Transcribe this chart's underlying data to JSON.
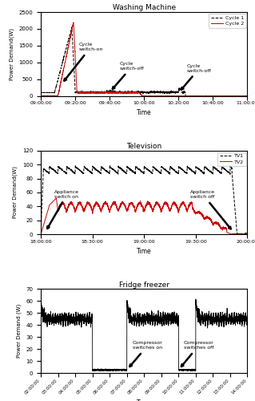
{
  "fig_width": 3.19,
  "fig_height": 5.0,
  "dpi": 100,
  "wm_title": "Washing Machine",
  "wm_ylabel": "Power Demand(W)",
  "wm_xlabel": "Time",
  "wm_ylim": [
    0,
    2500
  ],
  "wm_yticks": [
    0,
    500,
    1000,
    1500,
    2000,
    2500
  ],
  "wm_xticks": [
    "09:00:00",
    "09:20:00",
    "09:40:00",
    "10:00:00",
    "10:20:00",
    "10:40:00",
    "11:00:00"
  ],
  "wm_legend": [
    "Cycle 1",
    "Cycle 2"
  ],
  "tv_title": "Television",
  "tv_ylabel": "Power Demand(W)",
  "tv_xlabel": "Time",
  "tv_ylim": [
    0,
    120
  ],
  "tv_yticks": [
    0,
    20,
    40,
    60,
    80,
    100,
    120
  ],
  "tv_xticks": [
    "18:00:00",
    "18:30:00",
    "19:00:00",
    "19:30:00",
    "20:00:00"
  ],
  "tv_legend": [
    "TV1",
    "TV2"
  ],
  "ff_title": "Fridge freezer",
  "ff_ylabel": "Power Demand (W)",
  "ff_xlabel": "Time",
  "ff_ylim": [
    0,
    70
  ],
  "ff_yticks": [
    0,
    10,
    20,
    30,
    40,
    50,
    60,
    70
  ],
  "ff_xticks": [
    "02:00:00",
    "03:00:00",
    "04:00:00",
    "05:00:00",
    "06:00:00",
    "07:00:00",
    "08:00:00",
    "09:00:00",
    "10:00:00",
    "11:00:00",
    "12:00:00",
    "13:00:00",
    "14:00:00"
  ]
}
